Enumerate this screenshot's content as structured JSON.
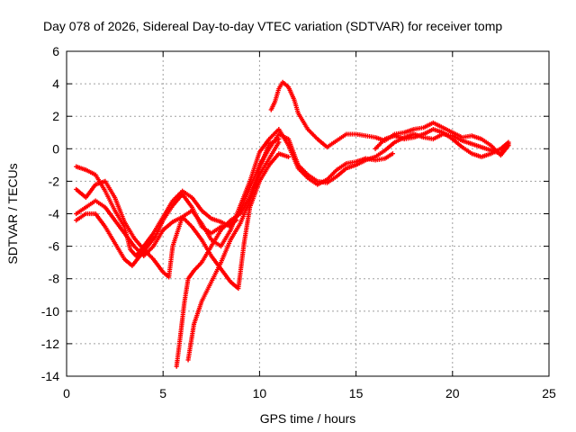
{
  "chart_data": {
    "type": "scatter",
    "title": "Day 078 of 2026, Sidereal Day-to-day VTEC variation (SDTVAR) for receiver tomp",
    "xlabel": "GPS time / hours",
    "ylabel": "SDTVAR / TECUs",
    "xlim": [
      0,
      25
    ],
    "ylim": [
      -14,
      6
    ],
    "xticks": [
      "0",
      "5",
      "10",
      "15",
      "20",
      "25"
    ],
    "yticks": [
      "-14",
      "-12",
      "-10",
      "-8",
      "-6",
      "-4",
      "-2",
      "0",
      "2",
      "4",
      "6"
    ],
    "grid": true,
    "legend": "none",
    "marker": "plus",
    "color": "#ff0000",
    "series": [
      {
        "points": [
          [
            0.5,
            -1.1
          ],
          [
            1.0,
            -1.3
          ],
          [
            1.5,
            -1.6
          ],
          [
            2.0,
            -2.6
          ],
          [
            2.5,
            -3.8
          ],
          [
            3.0,
            -4.8
          ],
          [
            3.3,
            -6.2
          ],
          [
            3.6,
            -6.6
          ],
          [
            4.0,
            -6.0
          ],
          [
            4.5,
            -5.2
          ],
          [
            5.0,
            -4.2
          ],
          [
            5.5,
            -3.2
          ],
          [
            6.0,
            -2.6
          ],
          [
            6.5,
            -3.0
          ],
          [
            7.0,
            -3.8
          ],
          [
            7.5,
            -4.3
          ],
          [
            8.0,
            -4.5
          ],
          [
            8.5,
            -4.8
          ],
          [
            9.0,
            -3.8
          ],
          [
            9.5,
            -2.4
          ],
          [
            10.0,
            -1.0
          ],
          [
            10.5,
            0.0
          ],
          [
            11.0,
            0.9
          ],
          [
            11.5,
            0.6
          ],
          [
            12.0,
            -1.0
          ],
          [
            12.5,
            -1.6
          ],
          [
            13.0,
            -2.0
          ],
          [
            13.5,
            -2.1
          ],
          [
            14.0,
            -1.7
          ],
          [
            14.5,
            -1.2
          ],
          [
            15.0,
            -1.0
          ],
          [
            15.5,
            -0.7
          ],
          [
            16.0,
            -0.5
          ],
          [
            16.5,
            -0.1
          ],
          [
            17.0,
            0.4
          ],
          [
            17.5,
            0.7
          ],
          [
            18.0,
            0.9
          ],
          [
            18.5,
            0.7
          ],
          [
            19.0,
            0.6
          ],
          [
            19.5,
            0.9
          ],
          [
            20.0,
            0.8
          ],
          [
            20.5,
            0.5
          ],
          [
            21.0,
            0.3
          ],
          [
            21.5,
            0.1
          ],
          [
            22.0,
            -0.1
          ],
          [
            22.5,
            -0.3
          ],
          [
            22.9,
            0.3
          ]
        ]
      },
      {
        "points": [
          [
            0.5,
            -2.5
          ],
          [
            1.0,
            -3.0
          ],
          [
            1.5,
            -2.2
          ],
          [
            2.0,
            -2.0
          ],
          [
            2.5,
            -3.0
          ],
          [
            3.0,
            -4.5
          ],
          [
            3.5,
            -5.5
          ],
          [
            4.0,
            -6.2
          ],
          [
            4.5,
            -6.8
          ],
          [
            5.0,
            -7.6
          ],
          [
            5.3,
            -7.9
          ],
          [
            5.5,
            -6.0
          ],
          [
            6.0,
            -4.2
          ],
          [
            6.5,
            -3.8
          ],
          [
            7.0,
            -4.6
          ],
          [
            7.5,
            -5.6
          ],
          [
            8.0,
            -6.0
          ],
          [
            8.5,
            -5.0
          ],
          [
            9.0,
            -3.5
          ],
          [
            9.5,
            -2.0
          ],
          [
            10.0,
            -0.2
          ],
          [
            10.5,
            0.6
          ],
          [
            11.0,
            1.2
          ],
          [
            11.5,
            0.2
          ],
          [
            12.0,
            -1.2
          ],
          [
            12.5,
            -1.8
          ],
          [
            13.0,
            -2.2
          ],
          [
            13.5,
            -1.9
          ],
          [
            14.0,
            -1.3
          ],
          [
            14.5,
            -0.9
          ],
          [
            15.0,
            -0.8
          ],
          [
            15.5,
            -0.6
          ],
          [
            16.0,
            -0.7
          ],
          [
            16.5,
            -0.6
          ],
          [
            16.9,
            -0.3
          ]
        ]
      },
      {
        "points": [
          [
            0.5,
            -4.0
          ],
          [
            1.0,
            -3.6
          ],
          [
            1.5,
            -3.2
          ],
          [
            2.0,
            -3.6
          ],
          [
            2.5,
            -4.4
          ],
          [
            3.0,
            -5.2
          ],
          [
            3.5,
            -6.0
          ],
          [
            4.0,
            -6.6
          ],
          [
            4.5,
            -6.0
          ],
          [
            5.0,
            -5.0
          ],
          [
            5.5,
            -4.5
          ],
          [
            6.0,
            -4.2
          ],
          [
            6.5,
            -4.8
          ],
          [
            7.0,
            -5.6
          ],
          [
            7.5,
            -6.6
          ],
          [
            8.0,
            -7.4
          ],
          [
            8.5,
            -8.2
          ],
          [
            8.9,
            -8.6
          ],
          [
            9.2,
            -5.8
          ],
          [
            9.5,
            -3.6
          ],
          [
            10.0,
            -2.0
          ],
          [
            10.5,
            -1.0
          ],
          [
            11.0,
            -0.3
          ],
          [
            11.5,
            -0.5
          ]
        ]
      },
      {
        "points": [
          [
            0.5,
            -4.4
          ],
          [
            1.0,
            -4.0
          ],
          [
            1.5,
            -4.0
          ],
          [
            2.0,
            -4.8
          ],
          [
            2.5,
            -5.8
          ],
          [
            3.0,
            -6.8
          ],
          [
            3.4,
            -7.2
          ],
          [
            3.8,
            -6.6
          ],
          [
            4.2,
            -6.0
          ],
          [
            4.6,
            -5.4
          ],
          [
            5.0,
            -4.4
          ],
          [
            5.5,
            -3.5
          ],
          [
            6.0,
            -2.8
          ],
          [
            6.5,
            -3.6
          ],
          [
            7.0,
            -4.8
          ],
          [
            7.5,
            -5.2
          ],
          [
            8.0,
            -4.8
          ],
          [
            8.5,
            -4.6
          ],
          [
            8.8,
            -4.4
          ]
        ]
      },
      {
        "points": [
          [
            5.7,
            -13.4
          ],
          [
            5.9,
            -11.5
          ],
          [
            6.1,
            -9.5
          ],
          [
            6.3,
            -8.0
          ],
          [
            6.6,
            -7.5
          ],
          [
            7.0,
            -7.0
          ],
          [
            7.5,
            -6.0
          ],
          [
            8.0,
            -5.0
          ],
          [
            8.5,
            -4.4
          ],
          [
            9.0,
            -4.0
          ],
          [
            9.5,
            -3.0
          ],
          [
            10.0,
            -1.6
          ],
          [
            10.5,
            -0.6
          ],
          [
            11.0,
            0.4
          ]
        ]
      },
      {
        "points": [
          [
            6.3,
            -13.0
          ],
          [
            6.6,
            -10.8
          ],
          [
            7.0,
            -9.4
          ],
          [
            7.5,
            -8.2
          ],
          [
            8.0,
            -7.0
          ],
          [
            8.5,
            -5.6
          ],
          [
            9.0,
            -4.6
          ],
          [
            9.5,
            -3.2
          ],
          [
            10.0,
            -1.2
          ],
          [
            10.5,
            0.3
          ],
          [
            11.0,
            0.6
          ]
        ]
      },
      {
        "points": [
          [
            10.6,
            2.4
          ],
          [
            10.8,
            2.9
          ],
          [
            11.0,
            3.7
          ],
          [
            11.2,
            4.1
          ],
          [
            11.5,
            3.8
          ],
          [
            11.8,
            3.0
          ],
          [
            12.0,
            2.2
          ],
          [
            12.5,
            1.2
          ],
          [
            13.0,
            0.6
          ],
          [
            13.5,
            0.1
          ],
          [
            14.0,
            0.5
          ],
          [
            14.5,
            0.9
          ],
          [
            15.0,
            0.9
          ],
          [
            15.5,
            0.8
          ],
          [
            16.0,
            0.7
          ],
          [
            16.5,
            0.5
          ],
          [
            17.0,
            0.9
          ],
          [
            17.5,
            1.0
          ],
          [
            18.0,
            1.2
          ],
          [
            18.5,
            1.3
          ],
          [
            19.0,
            1.6
          ],
          [
            19.5,
            1.3
          ],
          [
            20.0,
            1.0
          ],
          [
            20.5,
            0.7
          ],
          [
            21.0,
            0.8
          ],
          [
            21.5,
            0.6
          ],
          [
            22.0,
            0.2
          ],
          [
            22.5,
            -0.4
          ],
          [
            22.9,
            0.2
          ]
        ]
      },
      {
        "points": [
          [
            16.0,
            0.0
          ],
          [
            16.5,
            0.6
          ],
          [
            17.0,
            0.8
          ],
          [
            17.5,
            0.6
          ],
          [
            18.0,
            0.7
          ],
          [
            18.5,
            0.9
          ],
          [
            19.0,
            1.2
          ],
          [
            19.5,
            1.0
          ],
          [
            20.0,
            0.6
          ],
          [
            20.5,
            0.1
          ],
          [
            21.0,
            -0.3
          ],
          [
            21.5,
            -0.5
          ],
          [
            22.0,
            -0.3
          ],
          [
            22.5,
            0.0
          ],
          [
            22.9,
            0.4
          ]
        ]
      }
    ]
  }
}
